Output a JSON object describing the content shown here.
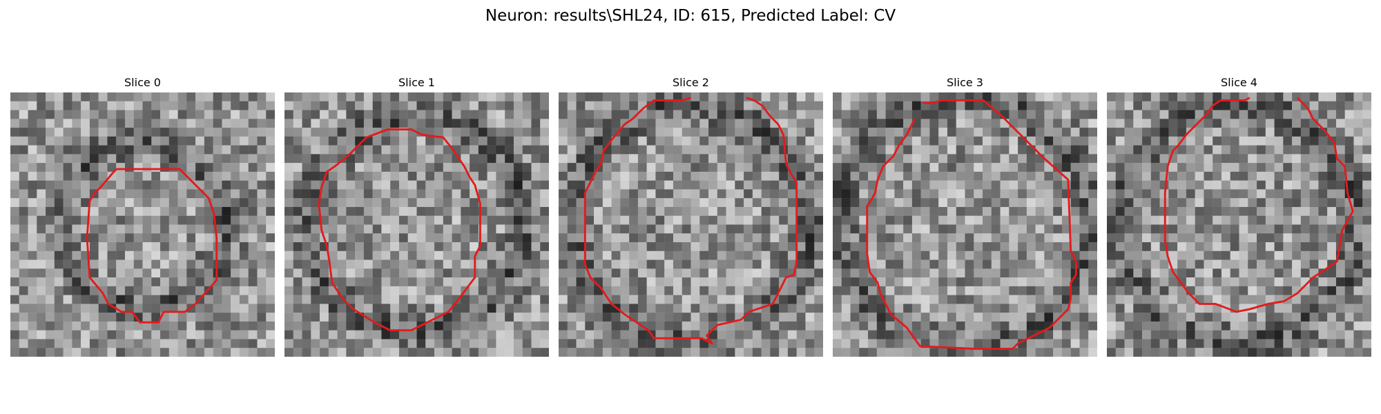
{
  "figure": {
    "title": "Neuron: results\\SHL24, ID: 615, Predicted Label: CV"
  },
  "panels": [
    {
      "title": "Slice 0",
      "seed": 11,
      "dark_ring": 0.33,
      "contour": [
        [
          0.4,
          0.29
        ],
        [
          0.64,
          0.29
        ],
        [
          0.75,
          0.4
        ],
        [
          0.77,
          0.46
        ],
        [
          0.78,
          0.55
        ],
        [
          0.78,
          0.71
        ],
        [
          0.7,
          0.8
        ],
        [
          0.66,
          0.83
        ],
        [
          0.58,
          0.83
        ],
        [
          0.56,
          0.87
        ],
        [
          0.49,
          0.87
        ],
        [
          0.46,
          0.83
        ],
        [
          0.42,
          0.83
        ],
        [
          0.37,
          0.8
        ],
        [
          0.35,
          0.76
        ],
        [
          0.3,
          0.7
        ],
        [
          0.29,
          0.55
        ],
        [
          0.3,
          0.41
        ],
        [
          0.32,
          0.38
        ],
        [
          0.34,
          0.36
        ]
      ]
    },
    {
      "title": "Slice 1",
      "seed": 23,
      "dark_ring": 0.43,
      "contour": [
        [
          0.31,
          0.17
        ],
        [
          0.39,
          0.14
        ],
        [
          0.48,
          0.14
        ],
        [
          0.52,
          0.16
        ],
        [
          0.6,
          0.17
        ],
        [
          0.64,
          0.22
        ],
        [
          0.68,
          0.28
        ],
        [
          0.7,
          0.32
        ],
        [
          0.72,
          0.35
        ],
        [
          0.74,
          0.42
        ],
        [
          0.74,
          0.52
        ],
        [
          0.74,
          0.58
        ],
        [
          0.72,
          0.62
        ],
        [
          0.72,
          0.7
        ],
        [
          0.66,
          0.78
        ],
        [
          0.62,
          0.83
        ],
        [
          0.56,
          0.86
        ],
        [
          0.52,
          0.88
        ],
        [
          0.48,
          0.9
        ],
        [
          0.4,
          0.9
        ],
        [
          0.34,
          0.87
        ],
        [
          0.26,
          0.82
        ],
        [
          0.22,
          0.78
        ],
        [
          0.18,
          0.72
        ],
        [
          0.17,
          0.64
        ],
        [
          0.16,
          0.58
        ],
        [
          0.14,
          0.52
        ],
        [
          0.13,
          0.42
        ],
        [
          0.14,
          0.36
        ],
        [
          0.16,
          0.3
        ],
        [
          0.19,
          0.28
        ],
        [
          0.24,
          0.24
        ]
      ]
    },
    {
      "title": "Slice 2",
      "seed": 37,
      "dark_ring": 0.47,
      "contour": [
        [
          0.5,
          0.02
        ],
        [
          0.47,
          0.03
        ],
        [
          0.36,
          0.03
        ],
        [
          0.32,
          0.06
        ],
        [
          0.28,
          0.1
        ],
        [
          0.25,
          0.12
        ],
        [
          0.2,
          0.18
        ],
        [
          0.17,
          0.22
        ],
        [
          0.16,
          0.27
        ],
        [
          0.14,
          0.3
        ],
        [
          0.1,
          0.38
        ],
        [
          0.1,
          0.5
        ],
        [
          0.1,
          0.65
        ],
        [
          0.12,
          0.7
        ],
        [
          0.16,
          0.74
        ],
        [
          0.2,
          0.8
        ],
        [
          0.25,
          0.84
        ],
        [
          0.34,
          0.9
        ],
        [
          0.36,
          0.93
        ],
        [
          0.54,
          0.93
        ],
        [
          0.58,
          0.95
        ],
        [
          0.56,
          0.92
        ],
        [
          0.6,
          0.88
        ],
        [
          0.69,
          0.86
        ],
        [
          0.72,
          0.83
        ],
        [
          0.81,
          0.8
        ],
        [
          0.84,
          0.74
        ],
        [
          0.86,
          0.7
        ],
        [
          0.89,
          0.69
        ],
        [
          0.9,
          0.64
        ],
        [
          0.9,
          0.34
        ],
        [
          0.88,
          0.31
        ],
        [
          0.86,
          0.27
        ],
        [
          0.85,
          0.16
        ],
        [
          0.83,
          0.12
        ],
        [
          0.8,
          0.09
        ],
        [
          0.77,
          0.05
        ],
        [
          0.74,
          0.03
        ],
        [
          0.71,
          0.02
        ]
      ]
    },
    {
      "title": "Slice 3",
      "seed": 51,
      "dark_ring": 0.5,
      "contour": [
        [
          0.34,
          0.04
        ],
        [
          0.38,
          0.04
        ],
        [
          0.41,
          0.03
        ],
        [
          0.57,
          0.03
        ],
        [
          0.64,
          0.09
        ],
        [
          0.72,
          0.17
        ],
        [
          0.8,
          0.25
        ],
        [
          0.89,
          0.33
        ],
        [
          0.9,
          0.6
        ],
        [
          0.92,
          0.64
        ],
        [
          0.92,
          0.69
        ],
        [
          0.9,
          0.72
        ],
        [
          0.9,
          0.78
        ],
        [
          0.89,
          0.82
        ],
        [
          0.82,
          0.89
        ],
        [
          0.74,
          0.93
        ],
        [
          0.7,
          0.95
        ],
        [
          0.68,
          0.97
        ],
        [
          0.54,
          0.97
        ],
        [
          0.33,
          0.96
        ],
        [
          0.28,
          0.89
        ],
        [
          0.22,
          0.84
        ],
        [
          0.2,
          0.8
        ],
        [
          0.18,
          0.76
        ],
        [
          0.17,
          0.72
        ],
        [
          0.14,
          0.68
        ],
        [
          0.13,
          0.61
        ],
        [
          0.13,
          0.48
        ],
        [
          0.13,
          0.43
        ],
        [
          0.15,
          0.4
        ],
        [
          0.16,
          0.38
        ],
        [
          0.17,
          0.33
        ],
        [
          0.19,
          0.28
        ],
        [
          0.23,
          0.24
        ],
        [
          0.25,
          0.2
        ],
        [
          0.28,
          0.16
        ],
        [
          0.31,
          0.1
        ]
      ]
    },
    {
      "title": "Slice 4",
      "seed": 67,
      "dark_ring": 0.47,
      "contour": [
        [
          0.54,
          0.02
        ],
        [
          0.52,
          0.03
        ],
        [
          0.43,
          0.03
        ],
        [
          0.4,
          0.05
        ],
        [
          0.38,
          0.08
        ],
        [
          0.35,
          0.11
        ],
        [
          0.3,
          0.16
        ],
        [
          0.27,
          0.2
        ],
        [
          0.25,
          0.22
        ],
        [
          0.23,
          0.28
        ],
        [
          0.22,
          0.38
        ],
        [
          0.22,
          0.56
        ],
        [
          0.23,
          0.62
        ],
        [
          0.25,
          0.68
        ],
        [
          0.28,
          0.72
        ],
        [
          0.31,
          0.76
        ],
        [
          0.35,
          0.8
        ],
        [
          0.41,
          0.8
        ],
        [
          0.49,
          0.83
        ],
        [
          0.54,
          0.82
        ],
        [
          0.61,
          0.8
        ],
        [
          0.67,
          0.79
        ],
        [
          0.72,
          0.76
        ],
        [
          0.78,
          0.7
        ],
        [
          0.87,
          0.64
        ],
        [
          0.89,
          0.52
        ],
        [
          0.93,
          0.45
        ],
        [
          0.91,
          0.38
        ],
        [
          0.9,
          0.28
        ],
        [
          0.87,
          0.25
        ],
        [
          0.86,
          0.19
        ],
        [
          0.82,
          0.14
        ],
        [
          0.78,
          0.1
        ],
        [
          0.76,
          0.06
        ],
        [
          0.72,
          0.02
        ]
      ]
    }
  ],
  "contour_color": "#e41a1c"
}
